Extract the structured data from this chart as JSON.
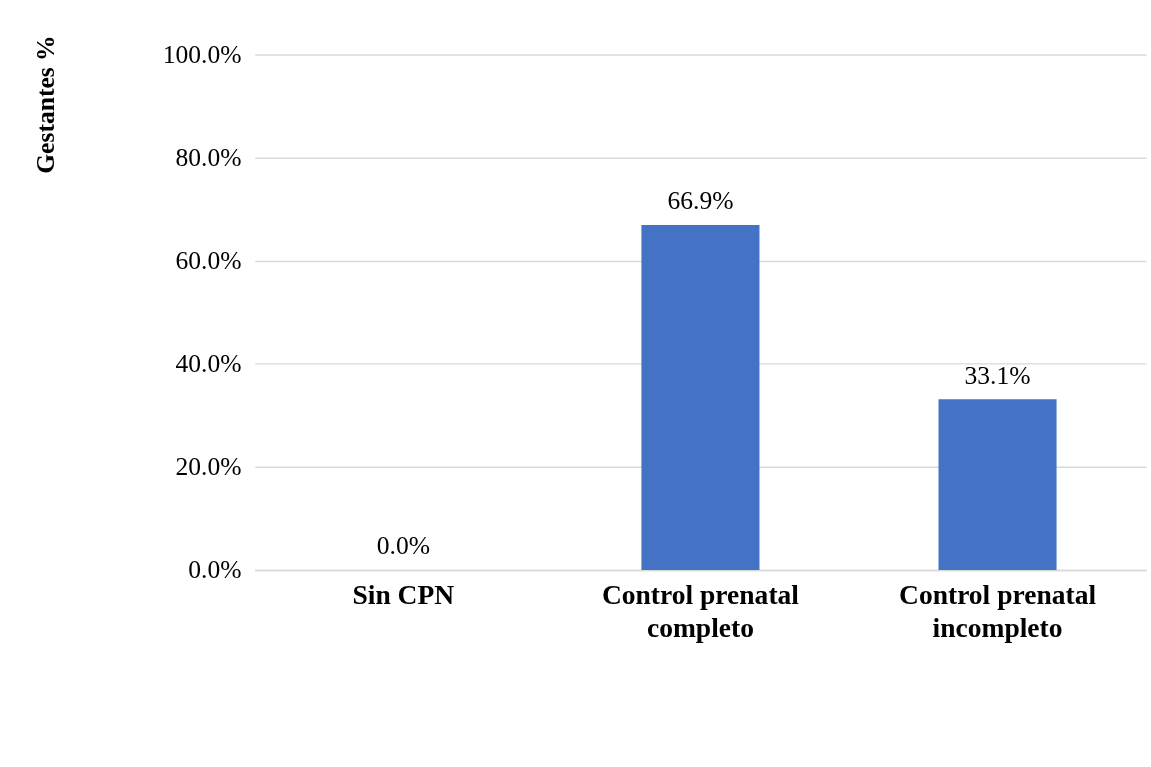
{
  "chart_data": {
    "type": "bar",
    "ylabel": "Gestantes %",
    "categories": [
      "Sin CPN",
      "Control prenatal completo",
      "Control prenatal incompleto"
    ],
    "values": [
      0,
      66.9,
      33.1
    ],
    "value_labels": [
      "0.0%",
      "66.9%",
      "33.1%"
    ],
    "color": "#4472c4",
    "ylim": [
      0,
      100
    ],
    "yticks": [
      {
        "value": 0,
        "label": "0.0%"
      },
      {
        "value": 20,
        "label": "20.0%"
      },
      {
        "value": 40,
        "label": "40.0%"
      },
      {
        "value": 60,
        "label": "60.0%"
      },
      {
        "value": 80,
        "label": "80.0%"
      },
      {
        "value": 100,
        "label": "100.0%"
      }
    ],
    "grid": "y"
  }
}
